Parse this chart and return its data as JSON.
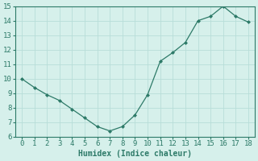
{
  "x": [
    0,
    1,
    2,
    3,
    4,
    5,
    6,
    7,
    8,
    9,
    10,
    11,
    12,
    13,
    14,
    15,
    16,
    17,
    18
  ],
  "y": [
    10.0,
    9.4,
    8.9,
    8.5,
    7.9,
    7.3,
    6.7,
    6.4,
    6.7,
    7.5,
    8.9,
    11.2,
    11.8,
    12.5,
    14.0,
    14.3,
    15.0,
    14.3,
    13.9
  ],
  "line_color": "#2d7a68",
  "marker_color": "#2d7a68",
  "bg_color": "#d6f0eb",
  "grid_color": "#b8ddd8",
  "xlabel": "Humidex (Indice chaleur)",
  "ylim": [
    6,
    15
  ],
  "xlim": [
    -0.5,
    18.5
  ],
  "yticks": [
    6,
    7,
    8,
    9,
    10,
    11,
    12,
    13,
    14,
    15
  ],
  "xticks": [
    0,
    1,
    2,
    3,
    4,
    5,
    6,
    7,
    8,
    9,
    10,
    11,
    12,
    13,
    14,
    15,
    16,
    17,
    18
  ],
  "label_fontsize": 7,
  "tick_fontsize": 6.5
}
